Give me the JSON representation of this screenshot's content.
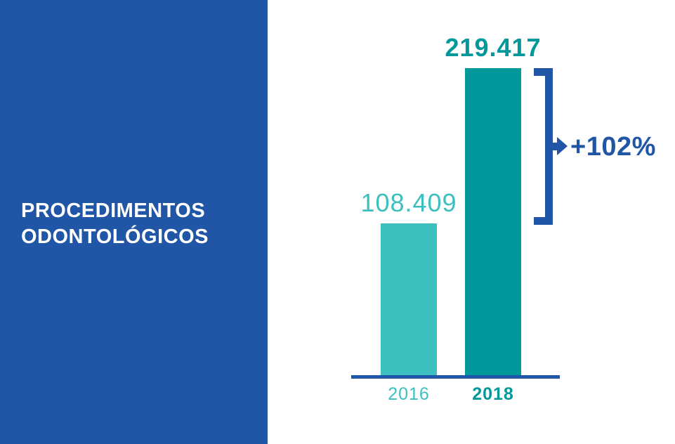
{
  "sidebar": {
    "title_line1": "PROCEDIMENTOS",
    "title_line2": "ODONTOLÓGICOS"
  },
  "colors": {
    "brand_blue": "#2156a6",
    "teal_light": "#3dbfc0",
    "teal_dark": "#00989a",
    "title_text": "#ffffff",
    "background": "#ffffff"
  },
  "chart_data": {
    "type": "bar",
    "title": "PROCEDIMENTOS ODONTOLÓGICOS",
    "categories": [
      "2016",
      "2018"
    ],
    "values": [
      108409,
      219417
    ],
    "value_labels": [
      "108.409",
      "219.417"
    ],
    "series_colors": [
      "#3dbfc0",
      "#00989a"
    ],
    "axis_color": "#2156a6",
    "xlabel": "",
    "ylabel": "",
    "grid": false,
    "legend": false,
    "ylim": [
      0,
      219417
    ],
    "annotations": [
      {
        "type": "bracket-arrow",
        "text": "+102%",
        "color": "#2156a6",
        "spans": "top of 2018 bar down to top of 2016 bar"
      }
    ]
  }
}
